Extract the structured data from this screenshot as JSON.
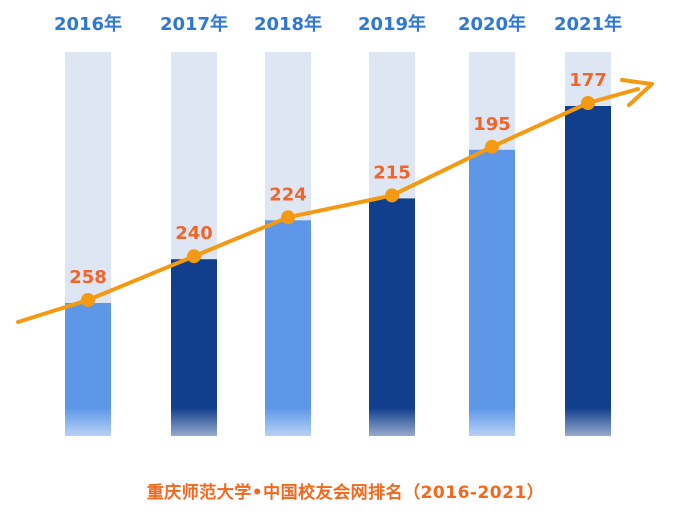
{
  "chart_data": {
    "type": "bar",
    "categories": [
      "2016年",
      "2017年",
      "2018年",
      "2019年",
      "2020年",
      "2021年"
    ],
    "values": [
      258,
      240,
      224,
      215,
      195,
      177
    ],
    "value_axis": "inverted",
    "ylim": [
      400,
      150
    ],
    "bar_colors": [
      "#5e97e8",
      "#123f8d",
      "#5e97e8",
      "#123f8d",
      "#5e97e8",
      "#123f8d"
    ],
    "track_color": "#dfe6f3",
    "line_color": "#f49a12",
    "label_color": "#f0662a",
    "category_label_color": "#2e78d4",
    "grid": false,
    "legend": "none"
  },
  "caption": "重庆师范大学•中国校友会网排名（2016-2021）"
}
